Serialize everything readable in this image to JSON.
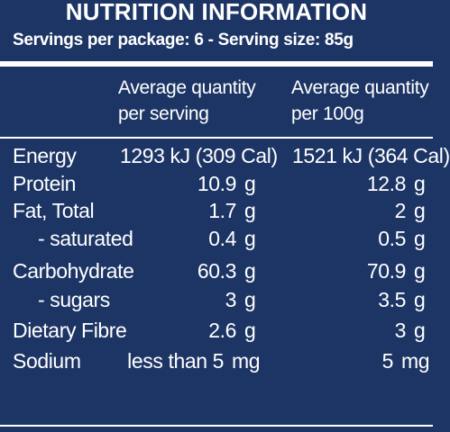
{
  "header": {
    "title": "NUTRITION INFORMATION",
    "servings": "Servings per package: 6 - Serving size: 85g"
  },
  "columns": {
    "per_serving_line1": "Average quantity",
    "per_serving_line2": "per serving",
    "per_100g_line1": "Average quantity",
    "per_100g_line2": "per 100g"
  },
  "rows": [
    {
      "name": "Energy",
      "serving": "1293 kJ (309 Cal)",
      "per100": "1521 kJ (364 Cal)"
    },
    {
      "name": "Protein",
      "serving": "10.9",
      "serving_unit": "g",
      "per100": "12.8",
      "per100_unit": "g"
    },
    {
      "name": "Fat, Total",
      "serving": "1.7",
      "serving_unit": "g",
      "per100": "2",
      "per100_unit": "g"
    },
    {
      "name": "- saturated",
      "serving": "0.4",
      "serving_unit": "g",
      "per100": "0.5",
      "per100_unit": "g"
    },
    {
      "name": "Carbohydrate",
      "serving": "60.3",
      "serving_unit": "g",
      "per100": "70.9",
      "per100_unit": "g"
    },
    {
      "name": "- sugars",
      "serving": "3",
      "serving_unit": "g",
      "per100": "3.5",
      "per100_unit": "g"
    },
    {
      "name": "Dietary Fibre",
      "serving": "2.6",
      "serving_unit": "g",
      "per100": "3",
      "per100_unit": "g"
    },
    {
      "name": "Sodium",
      "serving": "less than 5",
      "serving_unit": "mg",
      "per100": "5",
      "per100_unit": "mg"
    }
  ],
  "colors": {
    "background": "#1d3565",
    "text": "#ffffff"
  }
}
